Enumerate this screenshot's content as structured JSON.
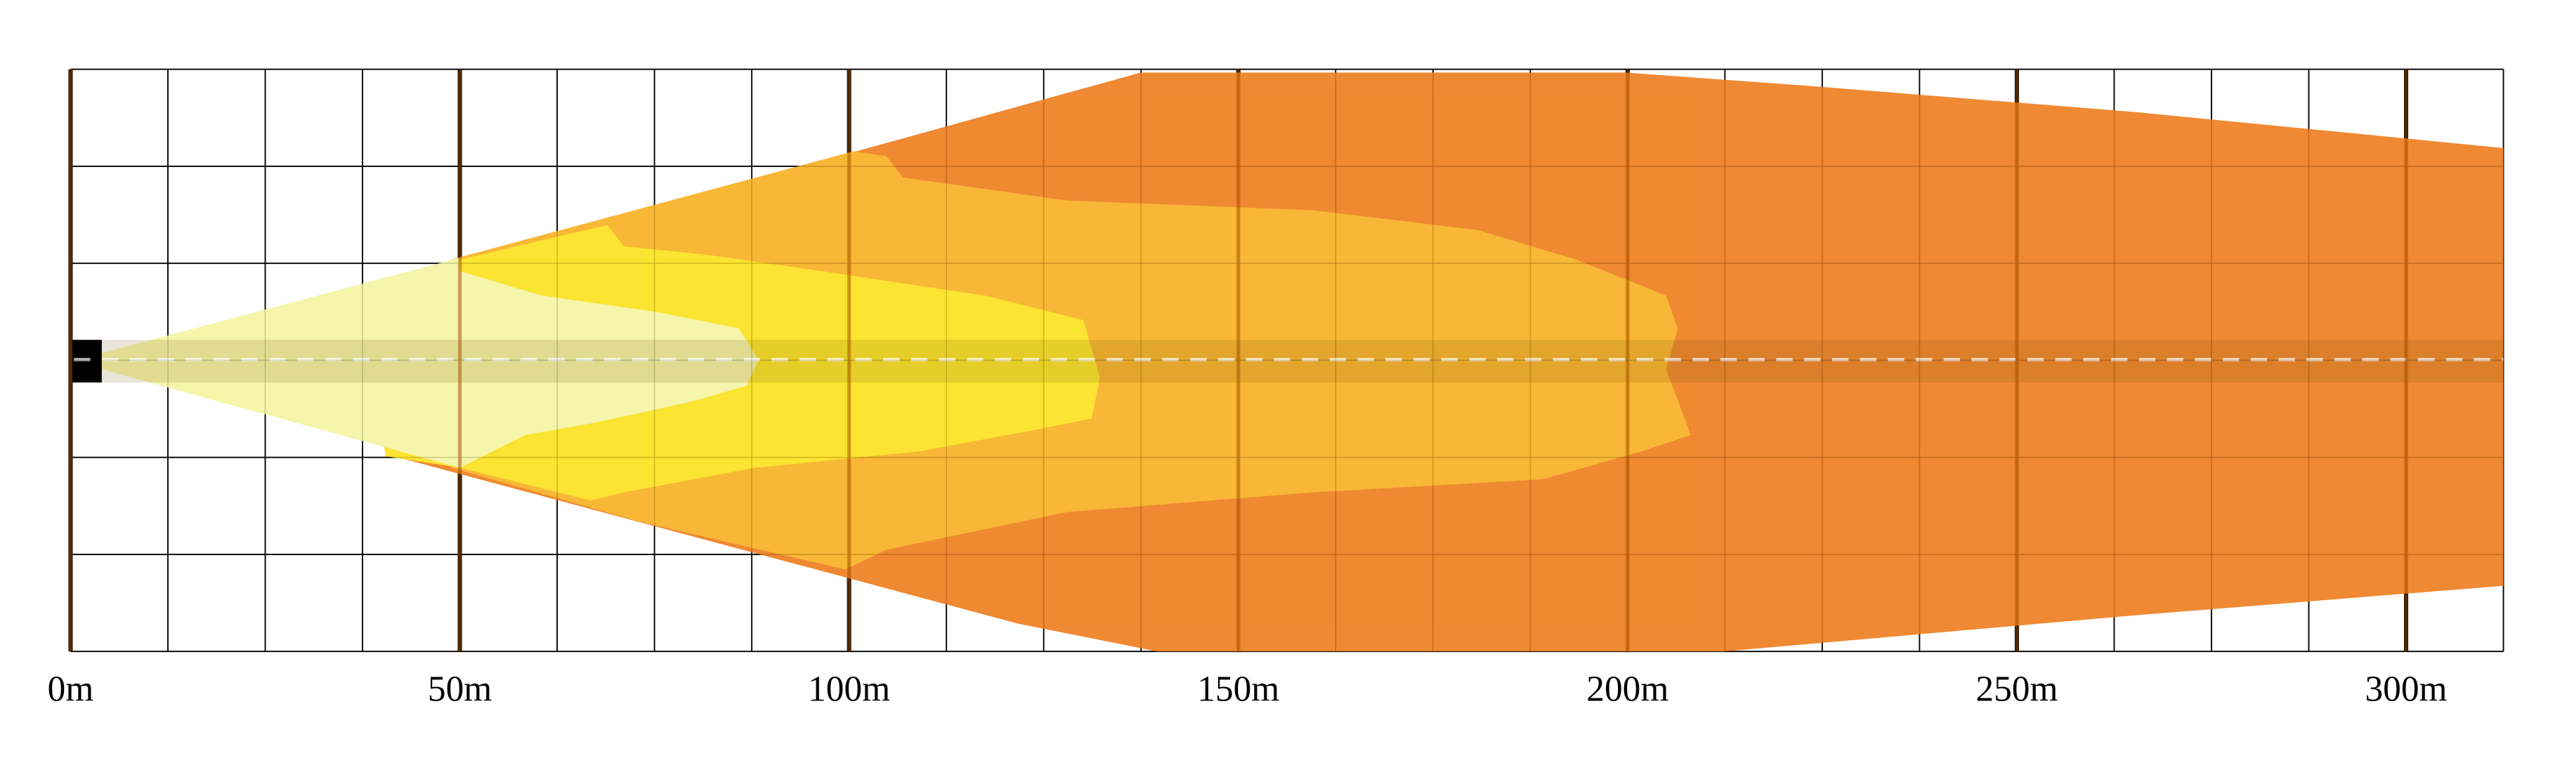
{
  "chart_data": {
    "type": "beam",
    "xlim": [
      0,
      312.5
    ],
    "xticks": [
      {
        "value": 0,
        "label": "0m"
      },
      {
        "value": 50,
        "label": "50m"
      },
      {
        "value": 100,
        "label": "100m"
      },
      {
        "value": 150,
        "label": "150m"
      },
      {
        "value": 200,
        "label": "200m"
      },
      {
        "value": 250,
        "label": "250m"
      },
      {
        "value": 300,
        "label": "300m"
      }
    ]
  }
}
